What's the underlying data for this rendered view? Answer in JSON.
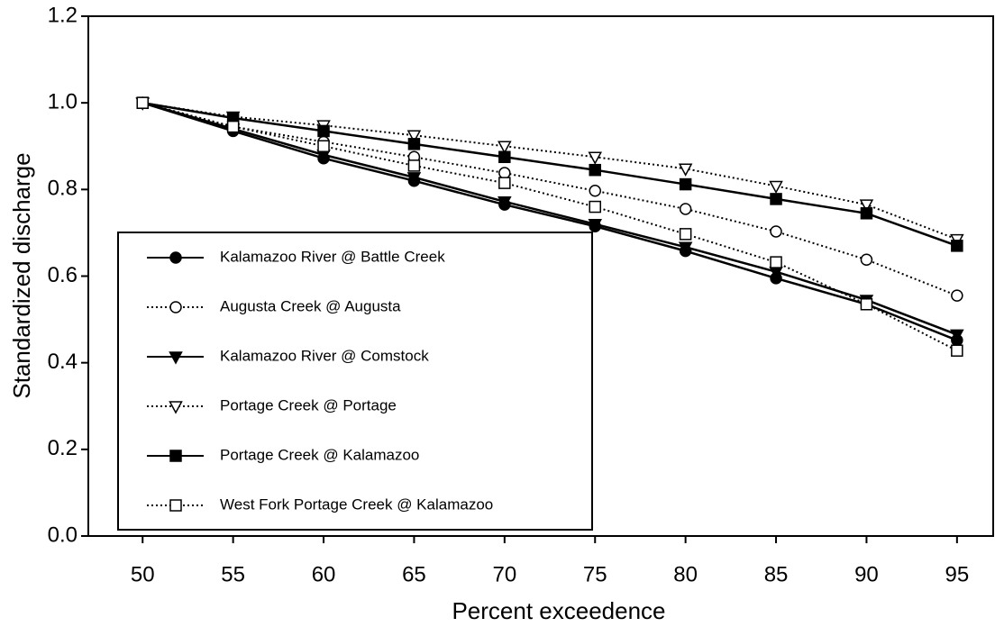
{
  "chart_data": {
    "type": "line",
    "x_label": "Percent exceedence",
    "y_label": "Standardized discharge",
    "x": [
      50,
      55,
      60,
      65,
      70,
      75,
      80,
      85,
      90,
      95
    ],
    "xlim": [
      47,
      97
    ],
    "xticks": [
      50,
      55,
      60,
      65,
      70,
      75,
      80,
      85,
      90,
      95
    ],
    "ylim": [
      0,
      1.2
    ],
    "yticks": [
      {
        "value": 0,
        "label": "0.0"
      },
      0.2,
      0.4,
      0.6,
      0.8,
      {
        "value": 1,
        "label": "1.0"
      },
      1.2
    ],
    "grid": false,
    "legend": "lower left",
    "series": [
      {
        "name": "Kalamazoo River @ Battle Creek",
        "color": "#000000",
        "marker": "circle",
        "filled": true,
        "dash": "solid",
        "values": [
          1.0,
          0.935,
          0.872,
          0.82,
          0.765,
          0.715,
          0.658,
          0.595,
          0.535,
          0.452
        ]
      },
      {
        "name": "Augusta Creek @ Augusta",
        "color": "#000000",
        "marker": "circle",
        "filled": false,
        "dash": "dotted",
        "values": [
          1.0,
          0.945,
          0.91,
          0.875,
          0.838,
          0.797,
          0.755,
          0.703,
          0.638,
          0.555
        ]
      },
      {
        "name": "Kalamazoo River @ Comstock",
        "color": "#000000",
        "marker": "triangle-down",
        "filled": true,
        "dash": "solid",
        "values": [
          1.0,
          0.94,
          0.88,
          0.828,
          0.772,
          0.72,
          0.667,
          0.61,
          0.545,
          0.465
        ]
      },
      {
        "name": "Portage Creek @ Portage",
        "color": "#000000",
        "marker": "triangle-down",
        "filled": false,
        "dash": "dotted",
        "values": [
          1.0,
          0.968,
          0.948,
          0.925,
          0.9,
          0.875,
          0.848,
          0.808,
          0.765,
          0.685
        ]
      },
      {
        "name": "Portage Creek @ Kalamazoo",
        "color": "#000000",
        "marker": "square",
        "filled": true,
        "dash": "solid",
        "values": [
          1.0,
          0.965,
          0.935,
          0.905,
          0.875,
          0.845,
          0.812,
          0.778,
          0.745,
          0.67
        ]
      },
      {
        "name": "West Fork Portage Creek @ Kalamazoo",
        "color": "#000000",
        "marker": "square",
        "filled": false,
        "dash": "dotted",
        "values": [
          1.0,
          0.945,
          0.9,
          0.855,
          0.815,
          0.76,
          0.697,
          0.632,
          0.535,
          0.428
        ]
      }
    ]
  }
}
